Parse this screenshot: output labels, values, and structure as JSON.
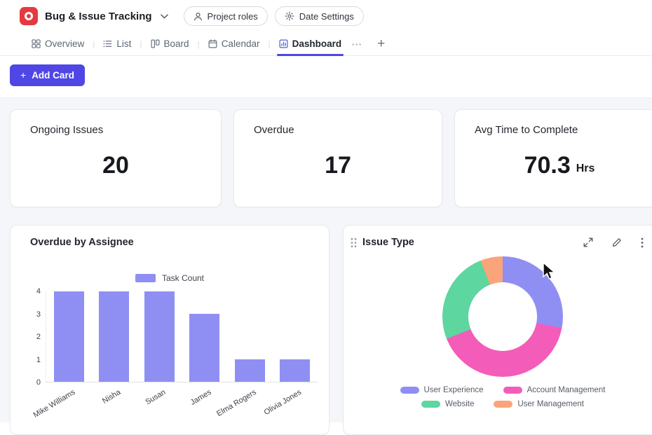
{
  "header": {
    "title": "Bug & Issue Tracking",
    "project_roles_label": "Project roles",
    "date_settings_label": "Date Settings",
    "brand_color": "#e6393f"
  },
  "tabs_separator": "|",
  "tabs": [
    {
      "label": "Overview",
      "active": false
    },
    {
      "label": "List",
      "active": false
    },
    {
      "label": "Board",
      "active": false
    },
    {
      "label": "Calendar",
      "active": false
    },
    {
      "label": "Dashboard",
      "active": true
    }
  ],
  "icons": {
    "more_tabs": "⋯",
    "add_tab": "+",
    "plus": "+"
  },
  "toolbar": {
    "add_card_label": "Add Card"
  },
  "stats": [
    {
      "title": "Ongoing Issues",
      "value": "20",
      "suffix": ""
    },
    {
      "title": "Overdue",
      "value": "17",
      "suffix": ""
    },
    {
      "title": "Avg Time to Complete",
      "value": "70.3",
      "suffix": "Hrs"
    }
  ],
  "colors": {
    "accent": "#4f46e5",
    "bar": "#8f8ff3"
  },
  "chart_data": [
    {
      "type": "bar",
      "title": "Overdue by Assignee",
      "legend": [
        {
          "label": "Task Count",
          "color": "#8f8ff3"
        }
      ],
      "categories": [
        "Mike Williams",
        "Nisha",
        "Susan",
        "James",
        "Elma Rogers",
        "Olivia Jones"
      ],
      "values": [
        4,
        4,
        4,
        3,
        1,
        1
      ],
      "xlabel": "",
      "ylabel": "",
      "ylim": [
        0,
        4
      ],
      "yticks": [
        0,
        1,
        2,
        3,
        4
      ],
      "bar_color": "#8f8ff3",
      "grid": false,
      "legend_position": "top-center"
    },
    {
      "type": "pie",
      "style": "donut",
      "title": "Issue Type",
      "legend_position": "bottom-center",
      "segments": [
        {
          "label": "User Experience",
          "value": 28,
          "color": "#8f8ff3"
        },
        {
          "label": "Account Management",
          "value": 41,
          "color": "#f45cb9"
        },
        {
          "label": "Website",
          "value": 25,
          "color": "#5ed69f"
        },
        {
          "label": "User Management",
          "value": 6,
          "color": "#f9a47a"
        }
      ]
    }
  ]
}
